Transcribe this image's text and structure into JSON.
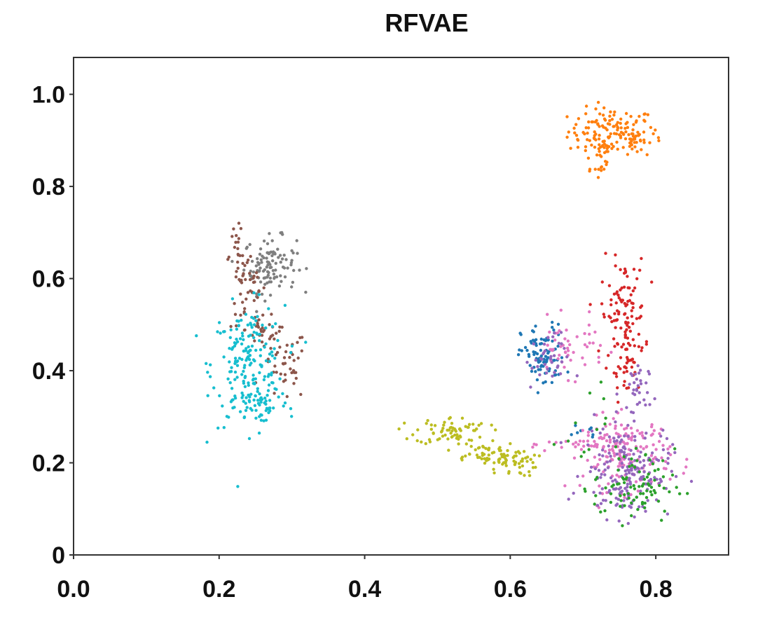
{
  "chart_data": {
    "type": "scatter",
    "title": "RFVAE",
    "xlabel": "",
    "ylabel": "",
    "xlim": [
      0.0,
      0.9
    ],
    "ylim": [
      0.0,
      1.08
    ],
    "x_ticks": [
      0.0,
      0.2,
      0.4,
      0.6,
      0.8
    ],
    "x_tick_labels": [
      "0.0",
      "0.2",
      "0.4",
      "0.6",
      "0.8"
    ],
    "y_ticks": [
      0.0,
      0.2,
      0.4,
      0.6,
      0.8,
      1.0
    ],
    "y_tick_labels": [
      "0",
      "0.2",
      "0.4",
      "0.6",
      "0.8",
      "1.0"
    ],
    "grid": false,
    "legend": "none",
    "clusters": [
      {
        "color": "#ff7f0e",
        "blobs": [
          [
            0.74,
            0.92,
            0.03,
            0.025,
            120
          ],
          [
            0.72,
            0.87,
            0.012,
            0.03,
            30
          ],
          [
            0.77,
            0.9,
            0.02,
            0.015,
            30
          ]
        ]
      },
      {
        "color": "#7f7f7f",
        "blobs": [
          [
            0.27,
            0.63,
            0.018,
            0.03,
            110
          ]
        ]
      },
      {
        "color": "#8c564b",
        "blobs": [
          [
            0.225,
            0.65,
            0.008,
            0.03,
            25
          ],
          [
            0.24,
            0.57,
            0.012,
            0.04,
            35
          ],
          [
            0.26,
            0.49,
            0.012,
            0.025,
            30
          ],
          [
            0.29,
            0.41,
            0.015,
            0.04,
            45
          ]
        ]
      },
      {
        "color": "#17becf",
        "blobs": [
          [
            0.24,
            0.41,
            0.025,
            0.065,
            190
          ],
          [
            0.26,
            0.33,
            0.018,
            0.02,
            40
          ]
        ]
      },
      {
        "color": "#bcbd22",
        "blobs": [
          [
            0.52,
            0.27,
            0.025,
            0.015,
            70
          ],
          [
            0.56,
            0.22,
            0.025,
            0.012,
            45
          ],
          [
            0.6,
            0.2,
            0.018,
            0.015,
            50
          ]
        ]
      },
      {
        "color": "#1f77b4",
        "blobs": [
          [
            0.645,
            0.43,
            0.015,
            0.035,
            90
          ],
          [
            0.7,
            0.27,
            0.01,
            0.01,
            8
          ]
        ]
      },
      {
        "color": "#d62728",
        "blobs": [
          [
            0.755,
            0.52,
            0.015,
            0.06,
            110
          ],
          [
            0.765,
            0.41,
            0.01,
            0.03,
            25
          ]
        ]
      },
      {
        "color": "#e377c2",
        "blobs": [
          [
            0.76,
            0.22,
            0.03,
            0.04,
            160
          ],
          [
            0.68,
            0.45,
            0.025,
            0.03,
            50
          ],
          [
            0.71,
            0.24,
            0.03,
            0.01,
            30
          ]
        ]
      },
      {
        "color": "#9467bd",
        "blobs": [
          [
            0.76,
            0.18,
            0.03,
            0.05,
            180
          ],
          [
            0.77,
            0.35,
            0.01,
            0.04,
            35
          ],
          [
            0.65,
            0.42,
            0.015,
            0.03,
            35
          ]
        ]
      },
      {
        "color": "#2ca02c",
        "blobs": [
          [
            0.77,
            0.15,
            0.028,
            0.04,
            90
          ],
          [
            0.71,
            0.3,
            0.015,
            0.04,
            10
          ]
        ]
      }
    ]
  }
}
